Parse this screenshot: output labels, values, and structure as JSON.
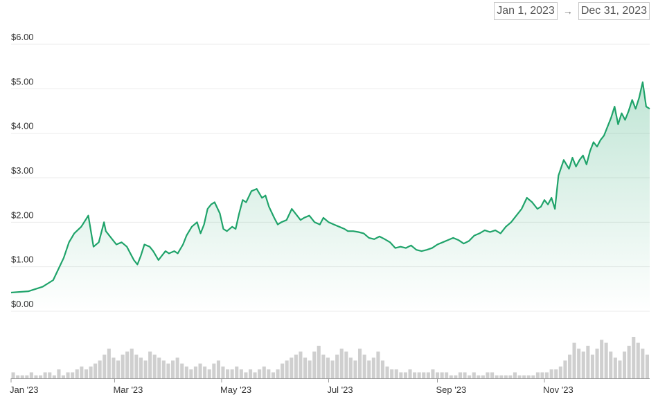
{
  "date_range": {
    "start": "Jan 1, 2023",
    "arrow": "→",
    "end": "Dec 31, 2023"
  },
  "colors": {
    "line": "#1fa36a",
    "fill_top": "#1fa36a",
    "grid": "#ebebeb",
    "volume": "#cfcfcf"
  },
  "chart_data": {
    "type": "area",
    "y_ticks": [
      "$0.00",
      "$1.00",
      "$2.00",
      "$3.00",
      "$4.00",
      "$5.00",
      "$6.00"
    ],
    "ylim": [
      0,
      6
    ],
    "x_ticks": [
      "Jan '23",
      "Mar '23",
      "May '23",
      "Jul '23",
      "Sep '23",
      "Nov '23"
    ],
    "x_tick_positions": [
      0,
      59,
      120,
      181,
      243,
      304
    ],
    "x_domain": [
      0,
      364
    ],
    "series": [
      {
        "x": [
          0,
          10,
          18,
          24,
          30,
          33,
          36,
          40,
          44,
          47,
          50,
          53,
          54,
          56,
          60,
          63,
          66,
          68,
          70,
          72,
          74,
          76,
          79,
          81,
          84,
          86,
          88,
          90,
          93,
          95,
          98,
          100,
          103,
          106,
          108,
          110,
          112,
          114,
          116,
          119,
          121,
          123,
          126,
          128,
          130,
          132,
          134,
          137,
          140,
          143,
          145,
          147,
          150,
          152,
          154,
          157,
          160,
          163,
          165,
          167,
          170,
          173,
          176,
          178,
          181,
          184,
          187,
          190,
          192,
          195,
          198,
          201,
          204,
          207,
          210,
          213,
          216,
          219,
          222,
          225,
          228,
          231,
          234,
          237,
          240,
          243,
          246,
          249,
          252,
          255,
          258,
          261,
          264,
          267,
          270,
          273,
          276,
          279,
          282,
          285,
          288,
          291,
          294,
          297,
          300,
          302,
          304,
          306,
          308,
          310,
          312,
          315,
          318,
          320,
          322,
          324,
          326,
          328,
          330,
          332,
          334,
          336,
          338,
          340,
          342,
          344,
          346,
          348,
          350,
          352,
          354,
          356,
          358,
          360,
          362,
          364
        ],
        "y": [
          0.42,
          0.45,
          0.55,
          0.7,
          1.2,
          1.55,
          1.75,
          1.9,
          2.15,
          1.45,
          1.55,
          2.0,
          1.8,
          1.7,
          1.5,
          1.55,
          1.45,
          1.3,
          1.15,
          1.05,
          1.25,
          1.5,
          1.45,
          1.35,
          1.15,
          1.25,
          1.35,
          1.3,
          1.35,
          1.3,
          1.5,
          1.7,
          1.9,
          2.0,
          1.75,
          1.95,
          2.3,
          2.4,
          2.45,
          2.2,
          1.85,
          1.8,
          1.9,
          1.85,
          2.2,
          2.5,
          2.45,
          2.7,
          2.75,
          2.55,
          2.6,
          2.35,
          2.1,
          1.95,
          2.0,
          2.05,
          2.3,
          2.15,
          2.05,
          2.1,
          2.15,
          2.0,
          1.95,
          2.1,
          2.0,
          1.95,
          1.9,
          1.85,
          1.8,
          1.8,
          1.78,
          1.75,
          1.65,
          1.62,
          1.68,
          1.62,
          1.55,
          1.42,
          1.45,
          1.42,
          1.48,
          1.38,
          1.35,
          1.38,
          1.42,
          1.5,
          1.55,
          1.6,
          1.65,
          1.6,
          1.52,
          1.58,
          1.7,
          1.75,
          1.82,
          1.78,
          1.82,
          1.75,
          1.9,
          2.0,
          2.15,
          2.3,
          2.55,
          2.45,
          2.3,
          2.35,
          2.5,
          2.4,
          2.55,
          2.3,
          3.05,
          3.4,
          3.2,
          3.45,
          3.25,
          3.4,
          3.5,
          3.3,
          3.6,
          3.8,
          3.7,
          3.85,
          3.95,
          4.15,
          4.35,
          4.6,
          4.2,
          4.45,
          4.3,
          4.5,
          4.75,
          4.55,
          4.8,
          5.15,
          4.6,
          4.55
        ]
      }
    ],
    "volume": [
      2,
      1,
      1,
      1,
      2,
      1,
      1,
      2,
      2,
      1,
      3,
      1,
      2,
      2,
      3,
      4,
      3,
      4,
      5,
      6,
      8,
      10,
      7,
      6,
      8,
      9,
      10,
      8,
      7,
      6,
      9,
      8,
      7,
      6,
      5,
      6,
      7,
      5,
      4,
      3,
      4,
      5,
      4,
      3,
      5,
      6,
      4,
      3,
      3,
      4,
      3,
      2,
      3,
      2,
      3,
      4,
      3,
      2,
      3,
      5,
      6,
      7,
      8,
      9,
      7,
      6,
      9,
      11,
      8,
      7,
      6,
      8,
      10,
      9,
      7,
      6,
      10,
      8,
      6,
      7,
      9,
      6,
      4,
      3,
      3,
      2,
      2,
      3,
      2,
      2,
      2,
      2,
      3,
      2,
      2,
      2,
      1,
      1,
      2,
      2,
      1,
      2,
      1,
      1,
      2,
      2,
      1,
      1,
      1,
      1,
      2,
      1,
      1,
      1,
      1,
      2,
      2,
      2,
      3,
      3,
      4,
      6,
      8,
      12,
      10,
      9,
      11,
      8,
      10,
      13,
      12,
      9,
      7,
      6,
      9,
      11,
      14,
      12,
      10,
      8
    ]
  }
}
